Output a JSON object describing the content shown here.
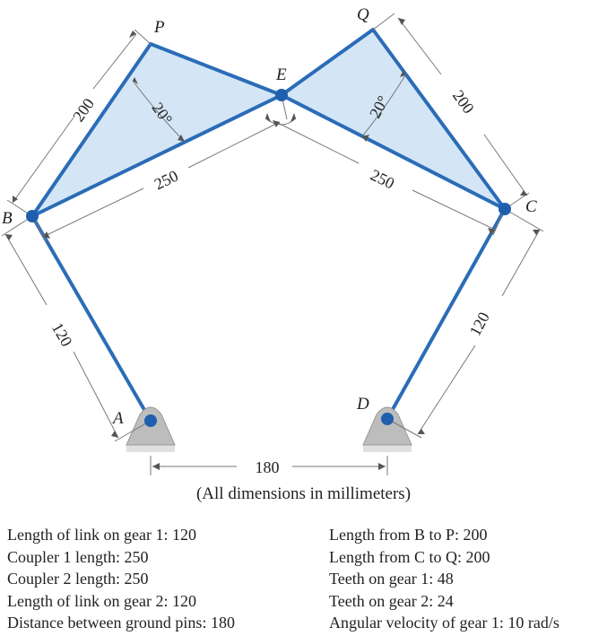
{
  "points": {
    "P": "P",
    "Q": "Q",
    "E": "E",
    "B": "B",
    "C": "C",
    "A": "A",
    "D": "D"
  },
  "dimensions": {
    "bp": "200",
    "cq": "200",
    "be": "250",
    "ce": "250",
    "ab": "120",
    "dc": "120",
    "ad": "180",
    "angle_p": "20°",
    "angle_q": "20°"
  },
  "note": "(All dimensions in millimeters)",
  "specs_left": [
    "Length of link on gear 1: 120",
    "Coupler 1 length: 250",
    "Coupler 2 length: 250",
    "Length of link on gear 2: 120",
    "Distance between ground pins: 180"
  ],
  "specs_right": [
    "Length from B to P: 200",
    "Length from C to Q: 200",
    "Teeth on gear 1: 48",
    "Teeth on gear 2: 24",
    "Angular velocity of gear 1: 10 rad/s"
  ],
  "colors": {
    "link": "#2b6cb8",
    "fill": "#d4e6f5",
    "joint": "#1f5fae",
    "dimension": "#666666",
    "ground": "#bdbdbd"
  }
}
